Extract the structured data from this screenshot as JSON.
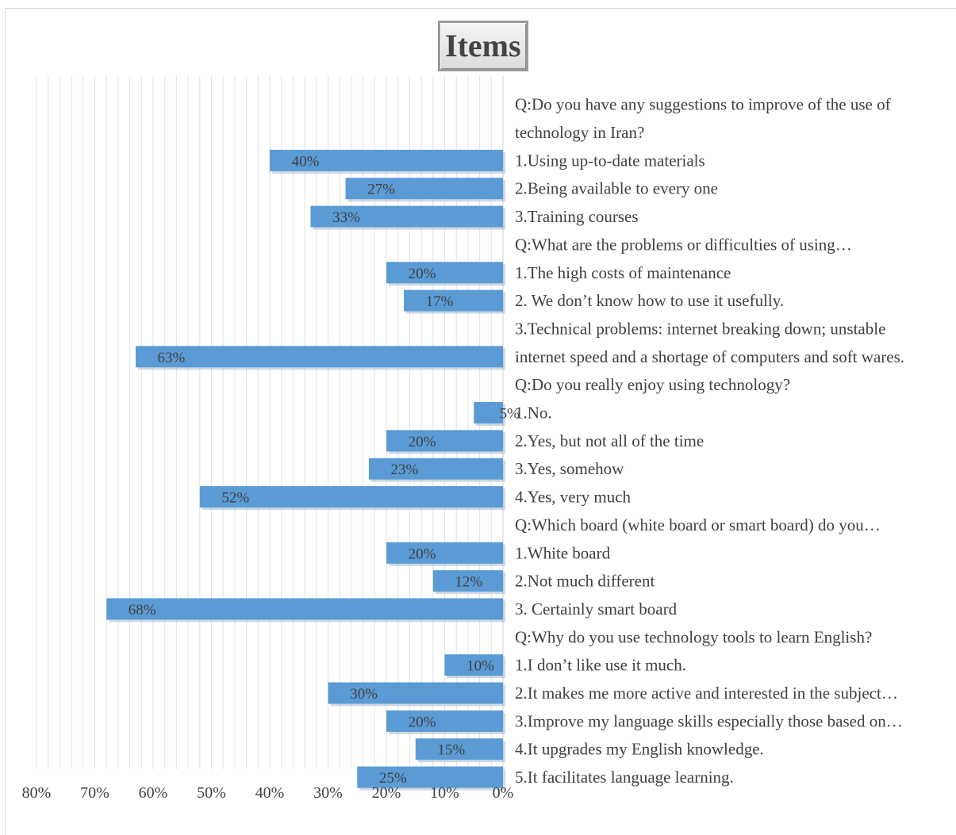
{
  "chart_data": {
    "type": "bar",
    "orientation": "horizontal-reversed",
    "title": "Items",
    "xlim": [
      0,
      0.8
    ],
    "x_ticks": [
      "80%",
      "70%",
      "60%",
      "50%",
      "40%",
      "30%",
      "20%",
      "10%",
      "0%"
    ],
    "grid": true,
    "bar_color": "#5b9bd5",
    "categories": [
      {
        "label": "Q:Do you have any suggestions to improve of the use of technology in Iran?",
        "lines": [
          "Q:Do you have any suggestions to improve of the use of",
          "technology in Iran?"
        ],
        "value": null
      },
      {
        "label": "1.Using up-to-date materials",
        "value": 0.4,
        "value_label": "40%"
      },
      {
        "label": "2.Being available to every one",
        "value": 0.27,
        "value_label": "27%"
      },
      {
        "label": "3.Training courses",
        "value": 0.33,
        "value_label": "33%"
      },
      {
        "label": "Q:What are the problems or difficulties of using…",
        "value": null
      },
      {
        "label": "1.The high costs of maintenance",
        "value": 0.2,
        "value_label": "20%"
      },
      {
        "label": "2. We don’t know how to use it usefully.",
        "value": 0.17,
        "value_label": "17%"
      },
      {
        "label": "3.Technical problems: internet breaking down; unstable internet speed and a shortage of computers and soft wares.",
        "lines": [
          "3.Technical problems: internet breaking down; unstable",
          "internet speed and a shortage of computers and soft wares."
        ],
        "value": 0.63,
        "value_label": "63%"
      },
      {
        "label": "Q:Do you really enjoy using technology?",
        "value": null
      },
      {
        "label": "1.No.",
        "value": 0.05,
        "value_label": "5%"
      },
      {
        "label": "2.Yes, but not all of the time",
        "value": 0.2,
        "value_label": "20%"
      },
      {
        "label": "3.Yes, somehow",
        "value": 0.23,
        "value_label": "23%"
      },
      {
        "label": "4.Yes, very much",
        "value": 0.52,
        "value_label": "52%"
      },
      {
        "label": "Q:Which board (white board or smart board) do you…",
        "value": null
      },
      {
        "label": "1.White board",
        "value": 0.2,
        "value_label": "20%"
      },
      {
        "label": "2.Not much different",
        "value": 0.12,
        "value_label": "12%"
      },
      {
        "label": "3. Certainly smart board",
        "value": 0.68,
        "value_label": "68%"
      },
      {
        "label": "Q:Why do you use technology tools to learn English?",
        "value": null
      },
      {
        "label": "1.I don’t like use it much.",
        "value": 0.1,
        "value_label": "10%"
      },
      {
        "label": "2.It makes me more active and interested in the subject…",
        "value": 0.3,
        "value_label": "30%"
      },
      {
        "label": "3.Improve my language skills especially those based on…",
        "value": 0.2,
        "value_label": "20%"
      },
      {
        "label": "4.It upgrades my English knowledge.",
        "value": 0.15,
        "value_label": "15%"
      },
      {
        "label": "5.It facilitates language learning.",
        "value": 0.25,
        "value_label": "25%"
      }
    ]
  }
}
